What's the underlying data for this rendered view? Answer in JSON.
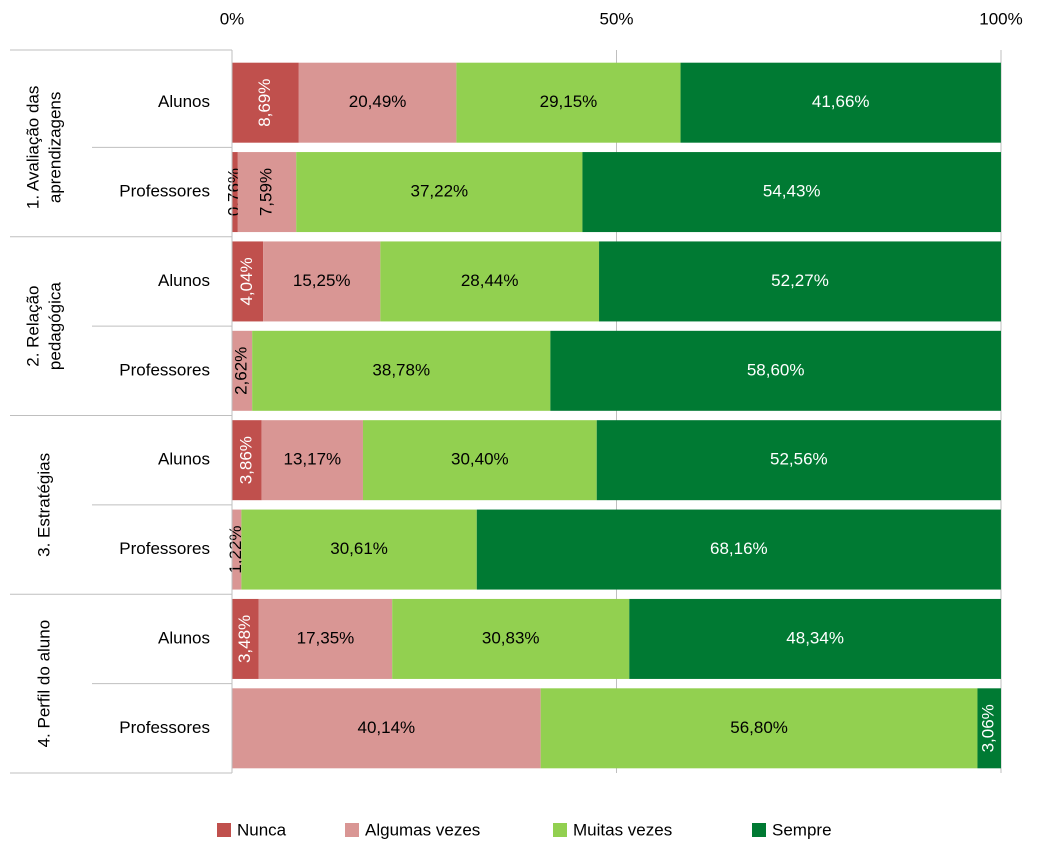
{
  "chart_data": {
    "type": "stacked-bar-horizontal",
    "groups": [
      {
        "lines": [
          "1. Avaliação das",
          "aprendizagens"
        ]
      },
      {
        "lines": [
          "2. Relação",
          "pedagógica"
        ]
      },
      {
        "lines": [
          "3. Estratégias"
        ]
      },
      {
        "lines": [
          "4. Perfil do aluno"
        ]
      }
    ],
    "categories": [
      "Alunos",
      "Professores",
      "Alunos",
      "Professores",
      "Alunos",
      "Professores",
      "Alunos",
      "Professores"
    ],
    "series": [
      {
        "name": "Nunca",
        "color": "#c0504d",
        "values": [
          8.69,
          0.76,
          4.04,
          null,
          3.86,
          null,
          3.48,
          null
        ],
        "value_labels": [
          "8,69%",
          "0,76%",
          "4,04%",
          null,
          "3,86%",
          null,
          "3,48%",
          null
        ]
      },
      {
        "name": "Algumas vezes",
        "color": "#d99694",
        "values": [
          20.49,
          7.59,
          15.25,
          2.62,
          13.17,
          1.22,
          17.35,
          40.14
        ],
        "value_labels": [
          "20,49%",
          "7,59%",
          "15,25%",
          "2,62%",
          "13,17%",
          "1,22%",
          "17,35%",
          "40,14%"
        ]
      },
      {
        "name": "Muitas vezes",
        "color": "#92d050",
        "values": [
          29.15,
          37.22,
          28.44,
          38.78,
          30.4,
          30.61,
          30.83,
          56.8
        ],
        "value_labels": [
          "29,15%",
          "37,22%",
          "28,44%",
          "38,78%",
          "30,40%",
          "30,61%",
          "30,83%",
          "56,80%"
        ]
      },
      {
        "name": "Sempre",
        "color": "#007a33",
        "values": [
          41.66,
          54.43,
          52.27,
          58.6,
          52.56,
          68.16,
          48.34,
          3.06
        ],
        "value_labels": [
          "41,66%",
          "54,43%",
          "52,27%",
          "58,60%",
          "52,56%",
          "68,16%",
          "48,34%",
          "3,06%"
        ]
      }
    ],
    "xlim": [
      0,
      100
    ],
    "xticks": [
      {
        "value": 0,
        "label": "0%"
      },
      {
        "value": 50,
        "label": "50%"
      },
      {
        "value": 100,
        "label": "100%"
      }
    ],
    "grid": true,
    "legend": "bottom"
  }
}
